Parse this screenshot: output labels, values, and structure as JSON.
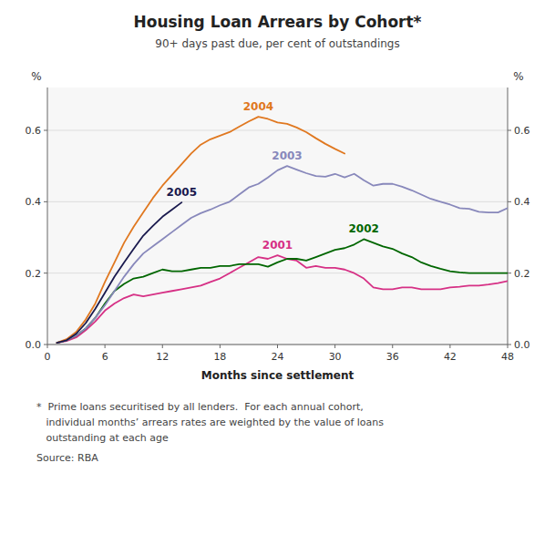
{
  "chart_data": {
    "type": "line",
    "title": "Housing Loan Arrears by Cohort*",
    "subtitle": "90+ days past due, per cent of outstandings",
    "x_label": "Months since settlement",
    "y_label": "%",
    "y2_label": "%",
    "annotations": [
      "*  Prime loans securitised by all lenders.  For each annual cohort,",
      "   individual months’ arrears rates are weighted by the value of loans",
      "   outstanding at each age",
      "Source: RBA"
    ],
    "xlim": [
      0,
      48
    ],
    "xticks": [
      0,
      6,
      12,
      18,
      24,
      30,
      36,
      42,
      48
    ],
    "ylim": [
      0.0,
      0.72
    ],
    "yticks": [
      {
        "value": 0.0,
        "label": "0.0"
      },
      0.2,
      0.4,
      0.6
    ],
    "y2lim": [
      0.0,
      0.72
    ],
    "y2ticks": [
      {
        "value": 0.0,
        "label": "0.0"
      },
      0.2,
      0.4,
      0.6
    ],
    "grid": true,
    "series": [
      {
        "name": "2001",
        "color": "#d63085",
        "x": [
          1,
          2,
          3,
          4,
          5,
          6,
          7,
          8,
          9,
          10,
          11,
          12,
          13,
          14,
          15,
          16,
          17,
          18,
          19,
          20,
          21,
          22,
          23,
          24,
          25,
          26,
          27,
          28,
          29,
          30,
          31,
          32,
          33,
          34,
          35,
          36,
          37,
          38,
          39,
          40,
          41,
          42,
          43,
          44,
          45,
          46,
          47,
          48
        ],
        "values": [
          0.005,
          0.01,
          0.02,
          0.04,
          0.065,
          0.095,
          0.115,
          0.13,
          0.14,
          0.135,
          0.14,
          0.145,
          0.15,
          0.155,
          0.16,
          0.165,
          0.175,
          0.185,
          0.2,
          0.215,
          0.23,
          0.245,
          0.24,
          0.25,
          0.24,
          0.235,
          0.215,
          0.22,
          0.215,
          0.215,
          0.21,
          0.2,
          0.185,
          0.16,
          0.155,
          0.155,
          0.16,
          0.16,
          0.155,
          0.155,
          0.155,
          0.16,
          0.162,
          0.165,
          0.165,
          0.168,
          0.172,
          0.178
        ]
      },
      {
        "name": "2002",
        "color": "#006600",
        "x": [
          1,
          2,
          3,
          4,
          5,
          6,
          7,
          8,
          9,
          10,
          11,
          12,
          13,
          14,
          15,
          16,
          17,
          18,
          19,
          20,
          21,
          22,
          23,
          24,
          25,
          26,
          27,
          28,
          29,
          30,
          31,
          32,
          33,
          34,
          35,
          36,
          37,
          38,
          39,
          40,
          41,
          42,
          43,
          44,
          45,
          46,
          47,
          48
        ],
        "values": [
          0.005,
          0.012,
          0.025,
          0.045,
          0.075,
          0.115,
          0.15,
          0.17,
          0.185,
          0.19,
          0.2,
          0.21,
          0.205,
          0.205,
          0.21,
          0.215,
          0.215,
          0.22,
          0.22,
          0.225,
          0.225,
          0.225,
          0.218,
          0.23,
          0.24,
          0.24,
          0.235,
          0.245,
          0.255,
          0.265,
          0.27,
          0.28,
          0.295,
          0.285,
          0.275,
          0.268,
          0.255,
          0.245,
          0.23,
          0.22,
          0.212,
          0.205,
          0.202,
          0.2,
          0.2,
          0.2,
          0.2,
          0.2
        ]
      },
      {
        "name": "2003",
        "color": "#8888bb",
        "x": [
          1,
          2,
          3,
          4,
          5,
          6,
          7,
          8,
          9,
          10,
          11,
          12,
          13,
          14,
          15,
          16,
          17,
          18,
          19,
          20,
          21,
          22,
          23,
          24,
          25,
          26,
          27,
          28,
          29,
          30,
          31,
          32,
          33,
          34,
          35,
          36,
          37,
          38,
          39,
          40,
          41,
          42,
          43,
          44,
          45,
          46,
          47,
          48
        ],
        "values": [
          0.005,
          0.012,
          0.025,
          0.045,
          0.075,
          0.11,
          0.15,
          0.19,
          0.225,
          0.255,
          0.275,
          0.295,
          0.315,
          0.335,
          0.355,
          0.368,
          0.378,
          0.39,
          0.4,
          0.42,
          0.44,
          0.45,
          0.468,
          0.488,
          0.5,
          0.49,
          0.48,
          0.472,
          0.47,
          0.478,
          0.468,
          0.478,
          0.46,
          0.445,
          0.45,
          0.45,
          0.442,
          0.432,
          0.42,
          0.408,
          0.4,
          0.392,
          0.382,
          0.38,
          0.372,
          0.37,
          0.37,
          0.382
        ]
      },
      {
        "name": "2004",
        "color": "#e07820",
        "x": [
          1,
          2,
          3,
          4,
          5,
          6,
          7,
          8,
          9,
          10,
          11,
          12,
          13,
          14,
          15,
          16,
          17,
          18,
          19,
          20,
          21,
          22,
          23,
          24,
          25,
          26,
          27,
          28,
          29,
          30,
          31
        ],
        "values": [
          0.005,
          0.015,
          0.035,
          0.07,
          0.115,
          0.175,
          0.23,
          0.285,
          0.33,
          0.37,
          0.41,
          0.445,
          0.475,
          0.505,
          0.535,
          0.56,
          0.575,
          0.585,
          0.595,
          0.61,
          0.625,
          0.638,
          0.632,
          0.622,
          0.618,
          0.608,
          0.595,
          0.578,
          0.562,
          0.548,
          0.535
        ]
      },
      {
        "name": "2005",
        "color": "#1a1a4e",
        "x": [
          1,
          2,
          3,
          4,
          5,
          6,
          7,
          8,
          9,
          10,
          11,
          12,
          13,
          14
        ],
        "values": [
          0.005,
          0.012,
          0.03,
          0.06,
          0.1,
          0.145,
          0.19,
          0.23,
          0.268,
          0.305,
          0.332,
          0.358,
          0.378,
          0.398
        ]
      }
    ]
  }
}
